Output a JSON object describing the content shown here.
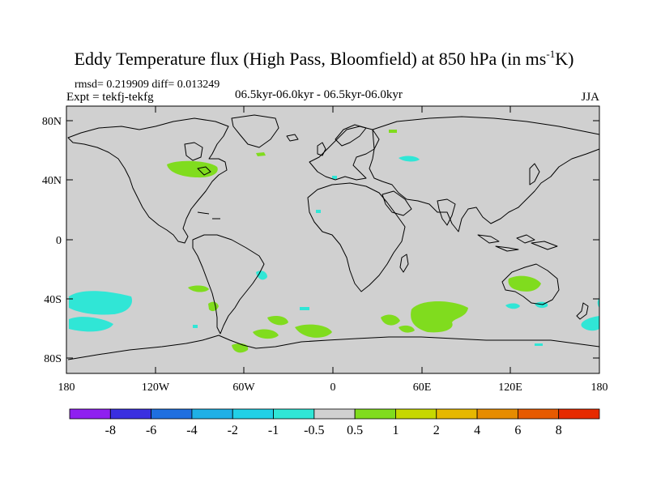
{
  "title": {
    "main": "Eddy Temperature flux (High Pass, Bloomfield) at 850 hPa (in ms",
    "superscript": "-1",
    "end": "K)"
  },
  "stats": "rmsd= 0.219909 diff= 0.013249",
  "experiment": "Expt = tekfj-tekfg",
  "period": "06.5kyr-06.0kyr - 06.5kyr-06.0kyr",
  "season": "JJA",
  "axes": {
    "lat_labels": [
      "80N",
      "40N",
      "0",
      "40S",
      "80S"
    ],
    "lon_labels": [
      "180",
      "120W",
      "60W",
      "0",
      "60E",
      "120E",
      "180"
    ]
  },
  "colorbar": {
    "colors": [
      "#8f1ff0",
      "#3a2fe0",
      "#1f6fe0",
      "#1fb0e6",
      "#22d0e6",
      "#30e6d6",
      "#d0d0d0",
      "#80dc1e",
      "#c6d800",
      "#e6b800",
      "#e68c00",
      "#e65a00",
      "#e62a00"
    ],
    "labels": [
      "-8",
      "-6",
      "-4",
      "-2",
      "-1",
      "-0.5",
      "0.5",
      "1",
      "2",
      "4",
      "6",
      "8"
    ]
  },
  "colors": {
    "ocean": "#d0d0d0",
    "positive": "#80dc1e",
    "negative": "#30e6d6"
  }
}
